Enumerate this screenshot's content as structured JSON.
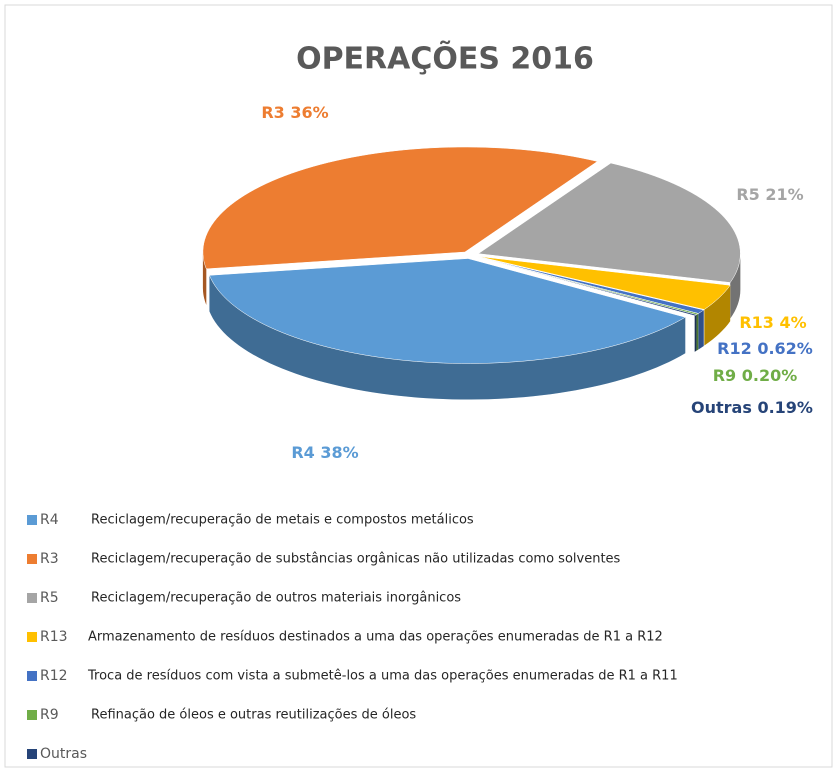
{
  "chart_data": {
    "type": "pie3d",
    "title": "OPERAÇÕES 2016",
    "categories": [
      "R4",
      "R3",
      "R5",
      "R13",
      "R12",
      "R9",
      "Outras"
    ],
    "values": [
      38,
      36,
      21,
      4,
      0.62,
      0.2,
      0.19
    ],
    "value_labels": [
      "38%",
      "36%",
      "21%",
      "4%",
      "0.62%",
      "0.20%",
      "0.19%"
    ],
    "colors": [
      "#5b9bd5",
      "#ed7d31",
      "#a5a5a5",
      "#ffc000",
      "#4472c4",
      "#70ad47",
      "#264478"
    ],
    "descriptions": [
      "Reciclagem/recuperação de metais e compostos metálicos",
      "Reciclagem/recuperação de substâncias orgânicas não utilizadas como solventes",
      "Reciclagem/recuperação de outros materiais inorgânicos",
      "Armazenamento de resíduos destinados a uma das operações enumeradas de R1 a R12",
      "Troca de resíduos com vista a submetê-los a uma das operações enumeradas de R1 a R11",
      "Refinação de óleos e outras reutilizações de óleos",
      null
    ],
    "legend": "bottom"
  }
}
